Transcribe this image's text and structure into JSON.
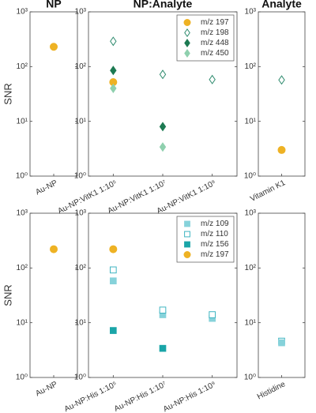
{
  "chart_data": [
    {
      "type": "dot",
      "title": "NP",
      "ylabel": "SNR",
      "log_scale": true,
      "ylim": [
        1,
        1000
      ],
      "yticks": [
        {
          "value": 1,
          "label": "10⁰"
        },
        {
          "value": 10,
          "label": "10¹"
        },
        {
          "value": 100,
          "label": "10²"
        },
        {
          "value": 1000,
          "label": "10³"
        }
      ],
      "categories": [
        "Au-NP"
      ],
      "series": [
        {
          "marker": "circle",
          "filled": true,
          "color": "#eeb224",
          "values": [
            230
          ]
        }
      ]
    },
    {
      "type": "dot",
      "title": "NP:Analyte",
      "log_scale": true,
      "ylim": [
        1,
        1000
      ],
      "legend": "upper right",
      "yticks": [
        {
          "value": 1,
          "label": "10⁰"
        },
        {
          "value": 10,
          "label": "10¹"
        },
        {
          "value": 100,
          "label": "10²"
        },
        {
          "value": 1000,
          "label": "10³"
        }
      ],
      "categories": [
        "Au-NP:VitK1 1:10⁵",
        "Au-NP:VitK1 1:10⁷",
        "Au-NP:VitK1 1:10⁹"
      ],
      "series": [
        {
          "name": "m/z 197",
          "marker": "circle",
          "filled": true,
          "color": "#eeb224",
          "values": [
            52,
            null,
            null
          ]
        },
        {
          "name": "m/z 198",
          "marker": "diamond",
          "filled": false,
          "color": "#2e8b6e",
          "values": [
            290,
            72,
            58
          ]
        },
        {
          "name": "m/z 448",
          "marker": "diamond",
          "filled": true,
          "color": "#1d7a52",
          "values": [
            85,
            8,
            null
          ]
        },
        {
          "name": "m/z 450",
          "marker": "diamond",
          "filled": true,
          "color": "#8fd0ae",
          "values": [
            40,
            3.4,
            null
          ]
        }
      ]
    },
    {
      "type": "dot",
      "title": "Analyte",
      "log_scale": true,
      "ylim": [
        1,
        1000
      ],
      "yticks": [
        {
          "value": 1,
          "label": "10⁰"
        },
        {
          "value": 10,
          "label": "10¹"
        },
        {
          "value": 100,
          "label": "10²"
        },
        {
          "value": 1000,
          "label": "10³"
        }
      ],
      "categories": [
        "Vitamin K1"
      ],
      "series": [
        {
          "marker": "diamond",
          "filled": false,
          "color": "#2e8b6e",
          "values": [
            57
          ]
        },
        {
          "marker": "circle",
          "filled": true,
          "color": "#eeb224",
          "values": [
            3
          ]
        }
      ]
    },
    {
      "type": "dot",
      "ylabel": "SNR",
      "log_scale": true,
      "ylim": [
        1,
        1000
      ],
      "yticks": [
        {
          "value": 1,
          "label": "10⁰"
        },
        {
          "value": 10,
          "label": "10¹"
        },
        {
          "value": 100,
          "label": "10²"
        },
        {
          "value": 1000,
          "label": "10³"
        }
      ],
      "categories": [
        "Au-NP"
      ],
      "series": [
        {
          "marker": "circle",
          "filled": true,
          "color": "#eeb224",
          "values": [
            220
          ]
        }
      ]
    },
    {
      "type": "dot",
      "log_scale": true,
      "ylim": [
        1,
        1000
      ],
      "legend": "upper right",
      "yticks": [
        {
          "value": 1,
          "label": "10⁰"
        },
        {
          "value": 10,
          "label": "10¹"
        },
        {
          "value": 100,
          "label": "10²"
        },
        {
          "value": 1000,
          "label": "10³"
        }
      ],
      "categories": [
        "Au-NP:His 1:10⁵",
        "Au-NP:His 1:10⁷",
        "Au-NP:His 1:10⁹"
      ],
      "series": [
        {
          "name": "m/z 109",
          "marker": "square",
          "filled": true,
          "color": "#86d2da",
          "values": [
            58,
            14,
            12
          ]
        },
        {
          "name": "m/z 110",
          "marker": "square",
          "filled": false,
          "color": "#3fb5c2",
          "values": [
            92,
            17,
            14
          ]
        },
        {
          "name": "m/z 156",
          "marker": "square",
          "filled": true,
          "color": "#1aa5a8",
          "values": [
            7.2,
            3.4,
            null
          ]
        },
        {
          "name": "m/z 197",
          "marker": "circle",
          "filled": true,
          "color": "#eeb224",
          "values": [
            220,
            null,
            null
          ]
        }
      ]
    },
    {
      "type": "dot",
      "log_scale": true,
      "ylim": [
        1,
        1000
      ],
      "yticks": [
        {
          "value": 1,
          "label": "10⁰"
        },
        {
          "value": 10,
          "label": "10¹"
        },
        {
          "value": 100,
          "label": "10²"
        },
        {
          "value": 1000,
          "label": "10³"
        }
      ],
      "categories": [
        "Histidine"
      ],
      "series": [
        {
          "marker": "square",
          "filled": false,
          "color": "#3fb5c2",
          "values": [
            4.6
          ]
        },
        {
          "marker": "square",
          "filled": true,
          "color": "#86d2da",
          "values": [
            4.3
          ]
        }
      ]
    }
  ]
}
